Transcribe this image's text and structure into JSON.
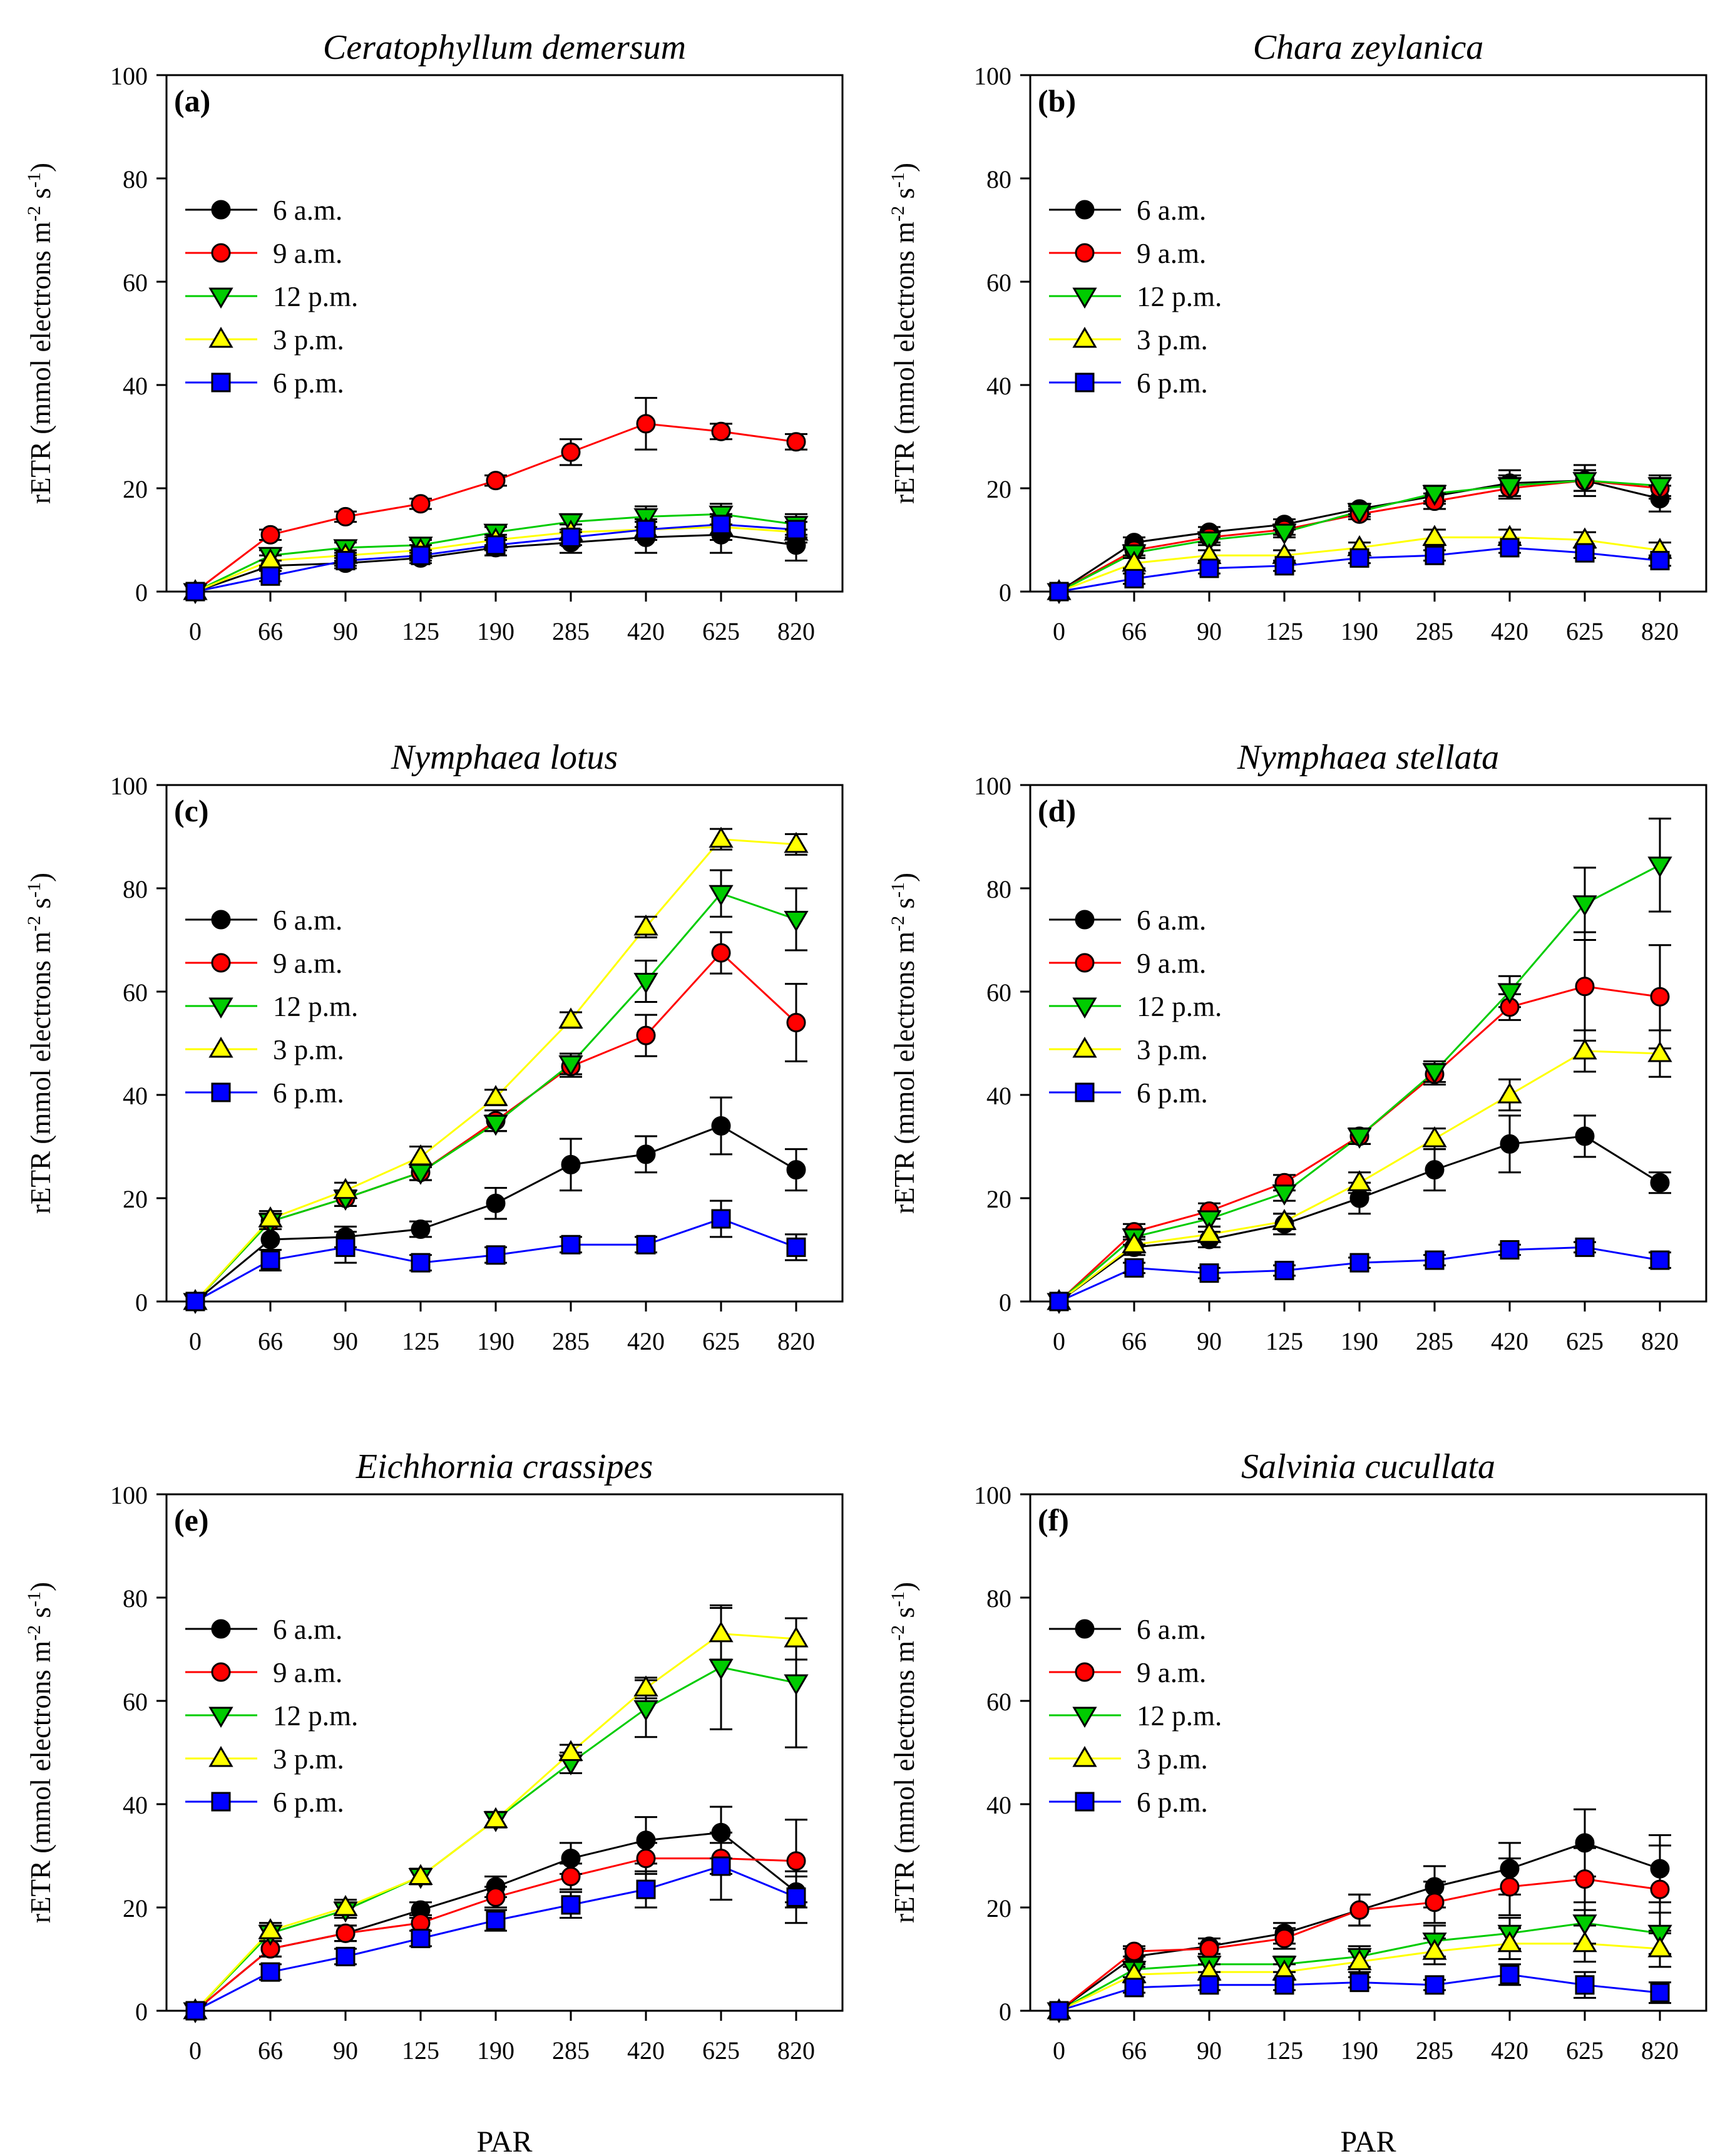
{
  "figure": {
    "x_axis_label": "PAR",
    "colors": {
      "6 a.m.": "#000000",
      "9 a.m.": "#ff0000",
      "12 p.m.": "#00cc00",
      "3 p.m.": "#ffff00",
      "6 p.m.": "#0000ff"
    },
    "markers": {
      "6 a.m.": "circle",
      "9 a.m.": "circle",
      "12 p.m.": "triangle-down",
      "3 p.m.": "triangle-up",
      "6 p.m.": "square"
    }
  },
  "chart_data": [
    {
      "type": "line",
      "panel": "(a)",
      "title": "Ceratophyllum demersum",
      "xlabel": "",
      "ylabel": "rETR (mmol electrons m-2 s-1)",
      "categories": [
        "0",
        "66",
        "90",
        "125",
        "190",
        "285",
        "420",
        "625",
        "820"
      ],
      "ylim": [
        0,
        100
      ],
      "yticks": [
        0,
        20,
        40,
        60,
        80,
        100
      ],
      "series": [
        {
          "name": "6 a.m.",
          "values": [
            0,
            5,
            5.5,
            6.5,
            8.5,
            9.5,
            10.5,
            11,
            9
          ],
          "errors": [
            0,
            1,
            1,
            1,
            1.5,
            2,
            3,
            3.5,
            3
          ]
        },
        {
          "name": "9 a.m.",
          "values": [
            0,
            11,
            14.5,
            17,
            21.5,
            27,
            32.5,
            31,
            29
          ],
          "errors": [
            0,
            1,
            1,
            1,
            1,
            2.5,
            5,
            1.5,
            1.5
          ]
        },
        {
          "name": "12 p.m.",
          "values": [
            0,
            7,
            8.5,
            9,
            11.5,
            13.5,
            14.5,
            15,
            13
          ],
          "errors": [
            0,
            1,
            1,
            1,
            1,
            1.5,
            2,
            2,
            2
          ]
        },
        {
          "name": "3 p.m.",
          "values": [
            0,
            6,
            7,
            8,
            10,
            11.5,
            12,
            12.5,
            11.5
          ],
          "errors": [
            0,
            1,
            1,
            1,
            1,
            1.5,
            2,
            2.5,
            2
          ]
        },
        {
          "name": "6 p.m.",
          "values": [
            0,
            3,
            6,
            7,
            9,
            10.5,
            12,
            13,
            12
          ],
          "errors": [
            0,
            1,
            1,
            1,
            1,
            1.5,
            2,
            2,
            1.5
          ]
        }
      ]
    },
    {
      "type": "line",
      "panel": "(b)",
      "title": "Chara zeylanica",
      "xlabel": "",
      "ylabel": "rETR (mmol electrons m-2 s-1)",
      "categories": [
        "0",
        "66",
        "90",
        "125",
        "190",
        "285",
        "420",
        "625",
        "820"
      ],
      "ylim": [
        0,
        100
      ],
      "yticks": [
        0,
        20,
        40,
        60,
        80,
        100
      ],
      "series": [
        {
          "name": "6 a.m.",
          "values": [
            0,
            9.5,
            11.5,
            13,
            16,
            18.5,
            21,
            21.5,
            18
          ],
          "errors": [
            0,
            1,
            1,
            1,
            1,
            1.5,
            2.5,
            3,
            2.5
          ]
        },
        {
          "name": "9 a.m.",
          "values": [
            0,
            8,
            10.5,
            12,
            15,
            17.5,
            20,
            21.5,
            20
          ],
          "errors": [
            0,
            1,
            1,
            1,
            1,
            1.5,
            2,
            2,
            2
          ]
        },
        {
          "name": "12 p.m.",
          "values": [
            0,
            7.5,
            10,
            11.5,
            15.5,
            19,
            20.5,
            21.5,
            20.5
          ],
          "errors": [
            0,
            1,
            1,
            1,
            1,
            1.5,
            2,
            2,
            2
          ]
        },
        {
          "name": "3 p.m.",
          "values": [
            0,
            5.5,
            7,
            7,
            8.5,
            10.5,
            10.5,
            10,
            8
          ],
          "errors": [
            0,
            1,
            1,
            1,
            1,
            1.5,
            1.5,
            1.5,
            1.5
          ]
        },
        {
          "name": "6 p.m.",
          "values": [
            0,
            2.5,
            4.5,
            5,
            6.5,
            7,
            8.5,
            7.5,
            6
          ],
          "errors": [
            0,
            1,
            1,
            1,
            1,
            1,
            1,
            1,
            1
          ]
        }
      ]
    },
    {
      "type": "line",
      "panel": "(c)",
      "title": "Nymphaea lotus",
      "xlabel": "",
      "ylabel": "rETR (mmol electrons m-2 s-1)",
      "categories": [
        "0",
        "66",
        "90",
        "125",
        "190",
        "285",
        "420",
        "625",
        "820"
      ],
      "ylim": [
        0,
        100
      ],
      "yticks": [
        0,
        20,
        40,
        60,
        80,
        100
      ],
      "series": [
        {
          "name": "6 a.m.",
          "values": [
            0,
            12,
            12.5,
            14,
            19,
            26.5,
            28.5,
            34,
            25.5
          ],
          "errors": [
            0,
            2,
            2,
            1.5,
            3,
            5,
            3.5,
            5.5,
            4
          ]
        },
        {
          "name": "9 a.m.",
          "values": [
            0,
            15.5,
            20,
            25,
            35,
            45.5,
            51.5,
            67.5,
            54
          ],
          "errors": [
            0,
            1.5,
            1.5,
            1.5,
            2,
            2,
            4,
            4,
            7.5
          ]
        },
        {
          "name": "12 p.m.",
          "values": [
            0,
            15.5,
            20,
            25,
            34.5,
            46,
            62,
            79,
            74
          ],
          "errors": [
            0,
            1.5,
            1.5,
            1.5,
            1.5,
            2,
            4,
            4.5,
            6
          ]
        },
        {
          "name": "3 p.m.",
          "values": [
            0,
            16,
            21.5,
            28,
            39.5,
            54.5,
            72.5,
            89.5,
            88.5
          ],
          "errors": [
            0,
            1.5,
            1.5,
            2,
            1.5,
            1.5,
            2,
            2,
            2
          ]
        },
        {
          "name": "6 p.m.",
          "values": [
            0,
            8,
            10.5,
            7.5,
            9,
            11,
            11,
            16,
            10.5
          ],
          "errors": [
            0,
            2,
            3,
            1.5,
            1.5,
            1.5,
            1.5,
            3.5,
            2.5
          ]
        }
      ]
    },
    {
      "type": "line",
      "panel": "(d)",
      "title": "Nymphaea stellata",
      "xlabel": "",
      "ylabel": "rETR (mmol electrons m-2 s-1)",
      "categories": [
        "0",
        "66",
        "90",
        "125",
        "190",
        "285",
        "420",
        "625",
        "820"
      ],
      "ylim": [
        0,
        100
      ],
      "yticks": [
        0,
        20,
        40,
        60,
        80,
        100
      ],
      "series": [
        {
          "name": "6 a.m.",
          "values": [
            0,
            10.5,
            12,
            15,
            20,
            25.5,
            30.5,
            32,
            23
          ],
          "errors": [
            0,
            1.5,
            1.5,
            2,
            3,
            4,
            5.5,
            4,
            2
          ]
        },
        {
          "name": "9 a.m.",
          "values": [
            0,
            13.5,
            17.5,
            23,
            32,
            44,
            57,
            61,
            59
          ],
          "errors": [
            0,
            1.5,
            1.5,
            1.5,
            1.5,
            2,
            2.5,
            10.5,
            10
          ]
        },
        {
          "name": "12 p.m.",
          "values": [
            0,
            12.5,
            16,
            21,
            32,
            44.5,
            60,
            77,
            84.5
          ],
          "errors": [
            0,
            1.5,
            1.5,
            1.5,
            1.5,
            2,
            3,
            7,
            9
          ]
        },
        {
          "name": "3 p.m.",
          "values": [
            0,
            11,
            13,
            15.5,
            23,
            31.5,
            40,
            48.5,
            48
          ],
          "errors": [
            0,
            1.5,
            1.5,
            1.5,
            2,
            2,
            3,
            4,
            4.5
          ]
        },
        {
          "name": "6 p.m.",
          "values": [
            0,
            6.5,
            5.5,
            6,
            7.5,
            8,
            10,
            10.5,
            8
          ],
          "errors": [
            0,
            1,
            1,
            1,
            1,
            1,
            1,
            1,
            1.5
          ]
        }
      ]
    },
    {
      "type": "line",
      "panel": "(e)",
      "title": "Eichhornia crassipes",
      "xlabel": "PAR",
      "ylabel": "rETR (mmol electrons m-2 s-1)",
      "categories": [
        "0",
        "66",
        "90",
        "125",
        "190",
        "285",
        "420",
        "625",
        "820"
      ],
      "ylim": [
        0,
        100
      ],
      "yticks": [
        0,
        20,
        40,
        60,
        80,
        100
      ],
      "series": [
        {
          "name": "6 a.m.",
          "values": [
            0,
            12,
            15,
            19.5,
            24,
            29.5,
            33,
            34.5,
            23
          ],
          "errors": [
            0,
            1.5,
            1.5,
            1.5,
            2,
            3,
            4.5,
            5,
            3
          ]
        },
        {
          "name": "9 a.m.",
          "values": [
            0,
            12,
            15,
            17,
            22,
            26,
            29.5,
            29.5,
            29
          ],
          "errors": [
            0,
            1.5,
            1.5,
            1.5,
            2,
            2.5,
            3,
            3,
            8
          ]
        },
        {
          "name": "12 p.m.",
          "values": [
            0,
            15,
            19.5,
            26,
            37,
            48,
            58.5,
            66.5,
            63.5
          ],
          "errors": [
            0,
            1.5,
            1.5,
            1.5,
            1.5,
            2,
            5.5,
            12,
            12.5
          ]
        },
        {
          "name": "3 p.m.",
          "values": [
            0,
            15.5,
            20,
            26,
            37,
            50,
            62.5,
            73,
            72
          ],
          "errors": [
            0,
            1.5,
            1.5,
            1.5,
            1.5,
            1.5,
            2,
            5,
            4
          ]
        },
        {
          "name": "6 p.m.",
          "values": [
            0,
            7.5,
            10.5,
            14,
            17.5,
            20.5,
            23.5,
            28,
            22
          ],
          "errors": [
            0,
            1.5,
            1.5,
            1.5,
            2,
            2.5,
            3.5,
            6.5,
            5
          ]
        }
      ]
    },
    {
      "type": "line",
      "panel": "(f)",
      "title": "Salvinia cucullata",
      "xlabel": "PAR",
      "ylabel": "rETR (mmol electrons m-2 s-1)",
      "categories": [
        "0",
        "66",
        "90",
        "125",
        "190",
        "285",
        "420",
        "625",
        "820"
      ],
      "ylim": [
        0,
        100
      ],
      "yticks": [
        0,
        20,
        40,
        60,
        80,
        100
      ],
      "series": [
        {
          "name": "6 a.m.",
          "values": [
            0,
            10.5,
            12.5,
            15,
            19.5,
            24,
            27.5,
            32.5,
            27.5
          ],
          "errors": [
            0,
            1.5,
            1.5,
            2,
            3,
            4,
            5,
            6.5,
            6.5
          ]
        },
        {
          "name": "9 a.m.",
          "values": [
            0,
            11.5,
            12,
            14,
            19.5,
            21,
            24,
            25.5,
            23.5
          ],
          "errors": [
            0,
            1,
            1,
            2,
            3,
            4,
            5.5,
            6,
            8.5
          ]
        },
        {
          "name": "12 p.m.",
          "values": [
            0,
            8,
            9,
            9,
            10.5,
            13.5,
            15,
            17,
            15
          ],
          "errors": [
            0,
            1.5,
            1.5,
            1.5,
            2,
            3,
            3,
            4,
            4
          ]
        },
        {
          "name": "3 p.m.",
          "values": [
            0,
            7,
            7.5,
            7.5,
            9.5,
            11.5,
            13,
            13,
            12
          ],
          "errors": [
            0,
            1.5,
            1.5,
            1.5,
            2,
            2.5,
            3,
            3.5,
            3.5
          ]
        },
        {
          "name": "6 p.m.",
          "values": [
            0,
            4.5,
            5,
            5,
            5.5,
            5,
            7,
            5,
            3.5
          ],
          "errors": [
            0,
            1,
            1,
            1,
            1,
            1,
            2,
            2.5,
            2
          ]
        }
      ]
    }
  ]
}
